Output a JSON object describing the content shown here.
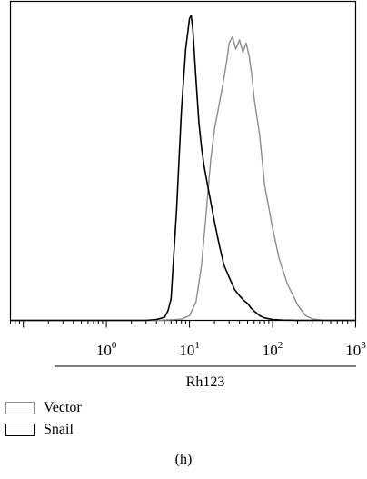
{
  "chart_data": {
    "type": "line",
    "xlabel": "Rh123",
    "x_scale": "log",
    "xlim": [
      0.07,
      1000
    ],
    "ylim": [
      0,
      1.0
    ],
    "x_ticks": [
      {
        "base": "10",
        "exp": "0",
        "value": 1
      },
      {
        "base": "10",
        "exp": "1",
        "value": 10
      },
      {
        "base": "10",
        "exp": "2",
        "value": 100
      },
      {
        "base": "10",
        "exp": "3",
        "value": 1000
      }
    ],
    "series": [
      {
        "name": "Vector",
        "color": "#8c8c8c",
        "x": [
          0.07,
          1,
          4,
          6,
          8,
          10,
          12,
          14,
          16,
          18,
          20,
          22,
          25,
          28,
          30,
          33,
          36,
          40,
          44,
          48,
          52,
          56,
          60,
          70,
          80,
          100,
          120,
          150,
          200,
          250,
          300,
          400,
          1000
        ],
        "y": [
          0,
          0,
          0,
          0.002,
          0.004,
          0.015,
          0.06,
          0.18,
          0.36,
          0.52,
          0.62,
          0.68,
          0.76,
          0.84,
          0.9,
          0.92,
          0.88,
          0.91,
          0.87,
          0.9,
          0.86,
          0.8,
          0.72,
          0.6,
          0.44,
          0.3,
          0.2,
          0.12,
          0.05,
          0.015,
          0.005,
          0,
          0
        ]
      },
      {
        "name": "Snail",
        "color": "#000000",
        "x": [
          0.07,
          1,
          3,
          4,
          5,
          5.5,
          6,
          7,
          8,
          9,
          10,
          10.5,
          11,
          12,
          13,
          14,
          15,
          17,
          20,
          23,
          26,
          30,
          35,
          40,
          45,
          50,
          55,
          60,
          70,
          80,
          100,
          130,
          200,
          1000
        ],
        "y": [
          0,
          0,
          0,
          0.003,
          0.01,
          0.03,
          0.07,
          0.36,
          0.68,
          0.88,
          0.98,
          0.99,
          0.94,
          0.78,
          0.64,
          0.56,
          0.5,
          0.42,
          0.32,
          0.24,
          0.18,
          0.14,
          0.1,
          0.08,
          0.065,
          0.055,
          0.04,
          0.03,
          0.015,
          0.008,
          0.003,
          0.001,
          0,
          0
        ]
      }
    ]
  },
  "legend": {
    "items": [
      {
        "label": "Vector",
        "color": "#8c8c8c"
      },
      {
        "label": "Snail",
        "color": "#000000"
      }
    ]
  },
  "panel_label": "(h)"
}
